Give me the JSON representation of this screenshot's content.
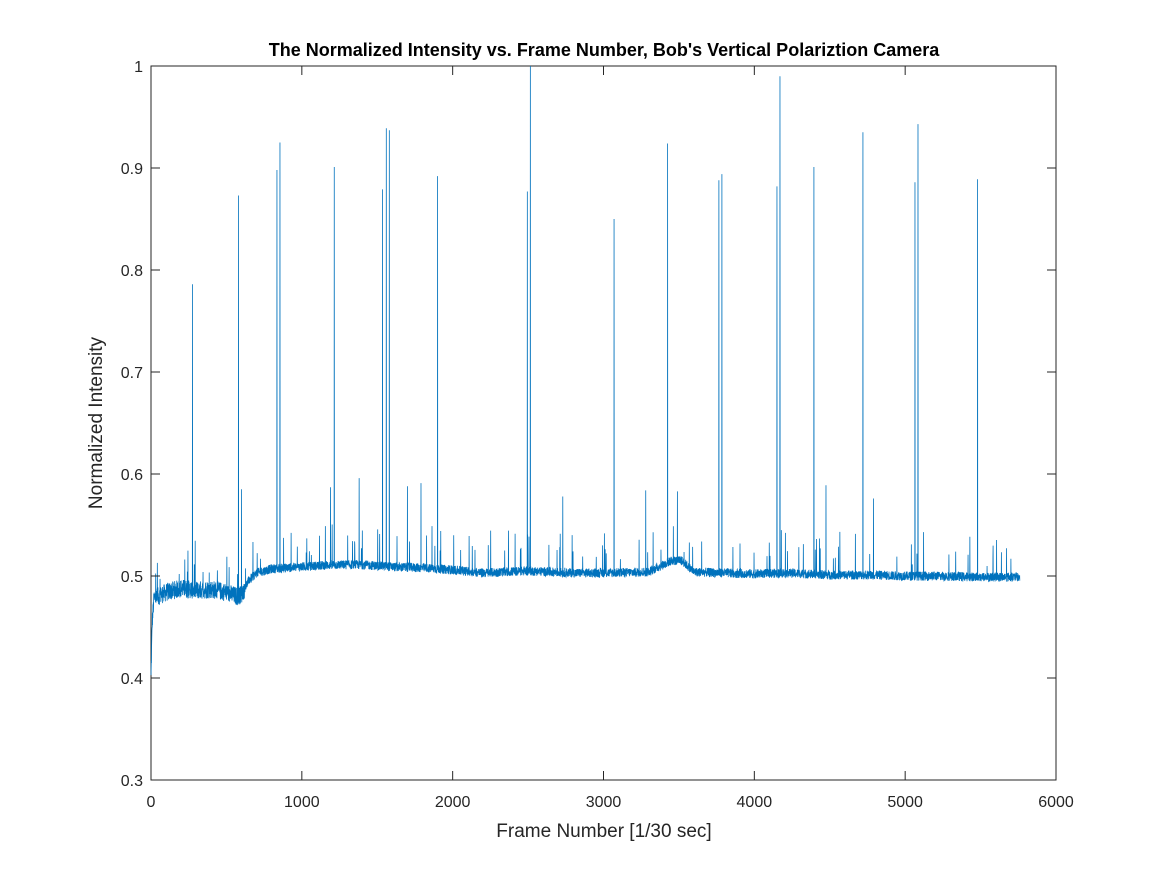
{
  "chart_data": {
    "type": "line",
    "title": "The Normalized Intensity vs. Frame Number, Bob's Vertical Polariztion Camera",
    "xlabel": "Frame Number [1/30 sec]",
    "ylabel": "Normalized Intensity",
    "xlim": [
      0,
      6000
    ],
    "ylim": [
      0.3,
      1
    ],
    "xticks": [
      "0",
      "1000",
      "2000",
      "3000",
      "4000",
      "5000",
      "6000"
    ],
    "yticks": [
      "0.3",
      "0.4",
      "0.5",
      "0.6",
      "0.7",
      "0.8",
      "0.9",
      "1"
    ],
    "xtick_values": [
      0,
      1000,
      2000,
      3000,
      4000,
      5000,
      6000
    ],
    "ytick_values": [
      0.3,
      0.4,
      0.5,
      0.6,
      0.7,
      0.8,
      0.9,
      1.0
    ],
    "grid": false,
    "line_color": "#0072BD",
    "frame_count": 5760,
    "baseline": [
      [
        0,
        0.4
      ],
      [
        8,
        0.455
      ],
      [
        20,
        0.478
      ],
      [
        100,
        0.484
      ],
      [
        200,
        0.488
      ],
      [
        300,
        0.486
      ],
      [
        400,
        0.487
      ],
      [
        500,
        0.484
      ],
      [
        570,
        0.48
      ],
      [
        600,
        0.482
      ],
      [
        650,
        0.496
      ],
      [
        700,
        0.503
      ],
      [
        800,
        0.507
      ],
      [
        1000,
        0.509
      ],
      [
        1200,
        0.511
      ],
      [
        1400,
        0.511
      ],
      [
        1600,
        0.509
      ],
      [
        1800,
        0.508
      ],
      [
        2000,
        0.506
      ],
      [
        2200,
        0.503
      ],
      [
        2500,
        0.505
      ],
      [
        2800,
        0.503
      ],
      [
        3000,
        0.503
      ],
      [
        3300,
        0.504
      ],
      [
        3450,
        0.515
      ],
      [
        3520,
        0.515
      ],
      [
        3600,
        0.504
      ],
      [
        3800,
        0.503
      ],
      [
        4000,
        0.502
      ],
      [
        4200,
        0.503
      ],
      [
        4500,
        0.501
      ],
      [
        4800,
        0.501
      ],
      [
        5000,
        0.5
      ],
      [
        5200,
        0.5
      ],
      [
        5500,
        0.499
      ],
      [
        5760,
        0.499
      ]
    ],
    "spikes": [
      {
        "x": 275,
        "y": 0.786
      },
      {
        "x": 580,
        "y": 0.873
      },
      {
        "x": 835,
        "y": 0.898
      },
      {
        "x": 855,
        "y": 0.925
      },
      {
        "x": 1215,
        "y": 0.901
      },
      {
        "x": 1535,
        "y": 0.879
      },
      {
        "x": 1560,
        "y": 0.939
      },
      {
        "x": 1580,
        "y": 0.937
      },
      {
        "x": 1900,
        "y": 0.892
      },
      {
        "x": 2495,
        "y": 0.877
      },
      {
        "x": 2515,
        "y": 1.0
      },
      {
        "x": 3070,
        "y": 0.85
      },
      {
        "x": 3425,
        "y": 0.924
      },
      {
        "x": 3765,
        "y": 0.888
      },
      {
        "x": 3785,
        "y": 0.894
      },
      {
        "x": 4150,
        "y": 0.882
      },
      {
        "x": 4170,
        "y": 0.99
      },
      {
        "x": 4395,
        "y": 0.901
      },
      {
        "x": 4720,
        "y": 0.935
      },
      {
        "x": 5065,
        "y": 0.886
      },
      {
        "x": 5085,
        "y": 0.943
      },
      {
        "x": 5480,
        "y": 0.889
      }
    ],
    "secondary_spikes": [
      {
        "x": 600,
        "y": 0.585
      },
      {
        "x": 1190,
        "y": 0.587
      },
      {
        "x": 1380,
        "y": 0.596
      },
      {
        "x": 1700,
        "y": 0.588
      },
      {
        "x": 1790,
        "y": 0.591
      },
      {
        "x": 2730,
        "y": 0.578
      },
      {
        "x": 3280,
        "y": 0.584
      },
      {
        "x": 3490,
        "y": 0.583
      },
      {
        "x": 4475,
        "y": 0.589
      },
      {
        "x": 4790,
        "y": 0.576
      }
    ]
  }
}
